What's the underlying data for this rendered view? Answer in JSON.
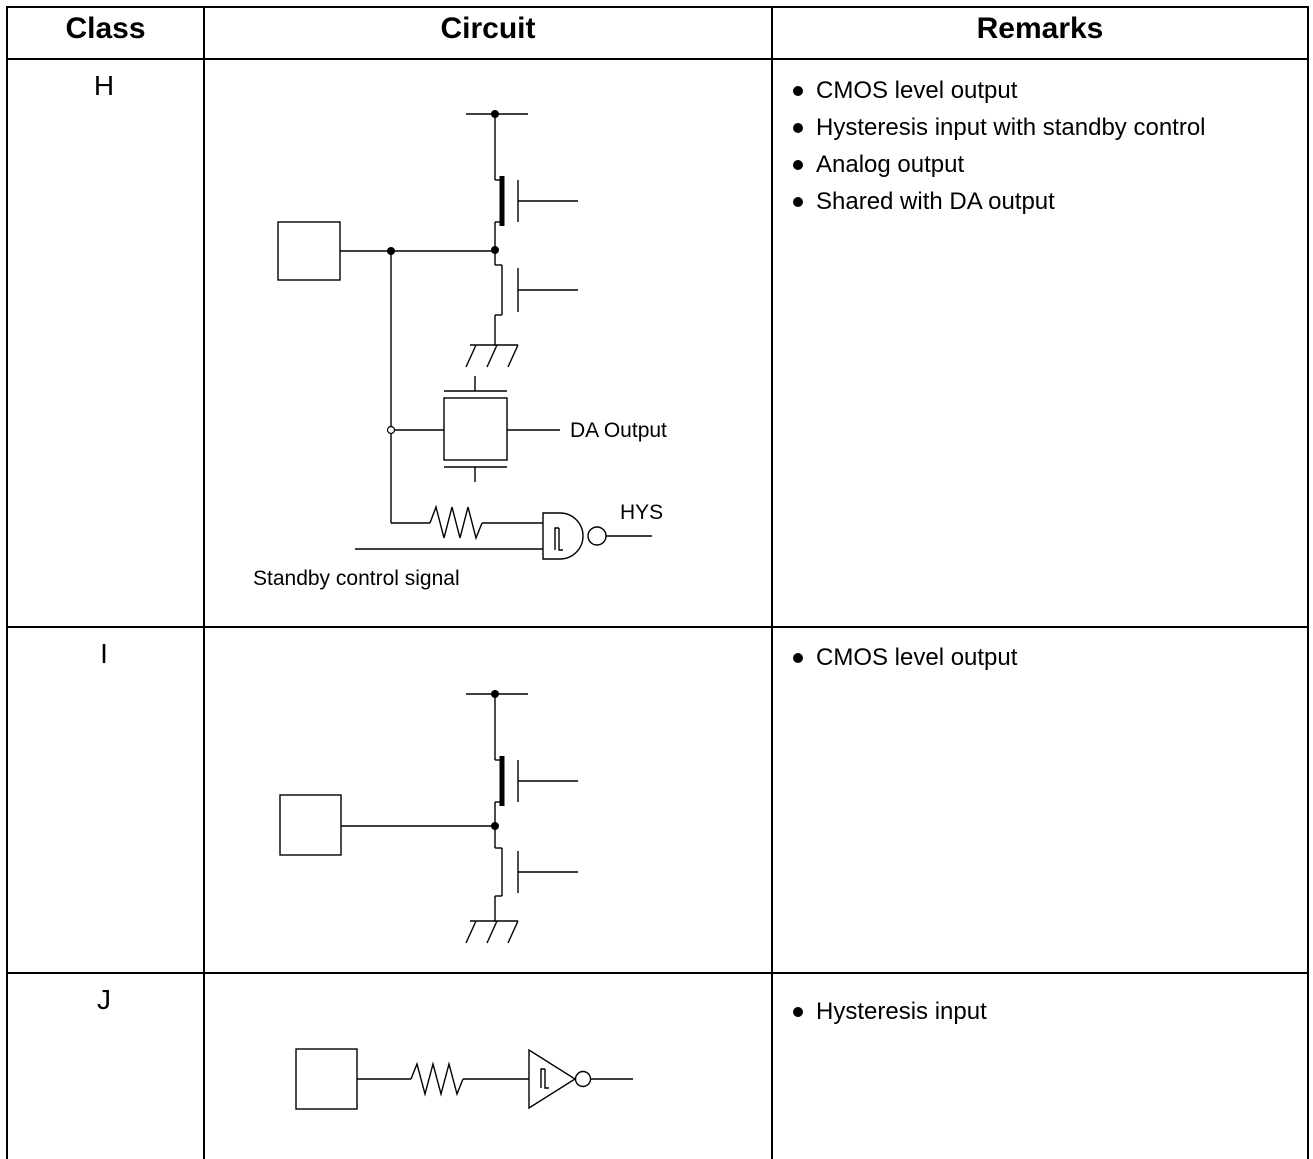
{
  "table": {
    "headers": {
      "class": "Class",
      "circuit": "Circuit",
      "remarks": "Remarks"
    },
    "rows": [
      {
        "class": "H",
        "remarks": [
          "CMOS level output",
          "Hysteresis input with standby control",
          "Analog output",
          "Shared with DA output"
        ],
        "labels": {
          "da_output": "DA Output",
          "hys": "HYS",
          "standby": "Standby control signal"
        }
      },
      {
        "class": "I",
        "remarks": [
          "CMOS level output"
        ]
      },
      {
        "class": "J",
        "remarks": [
          "Hysteresis input"
        ]
      }
    ]
  }
}
